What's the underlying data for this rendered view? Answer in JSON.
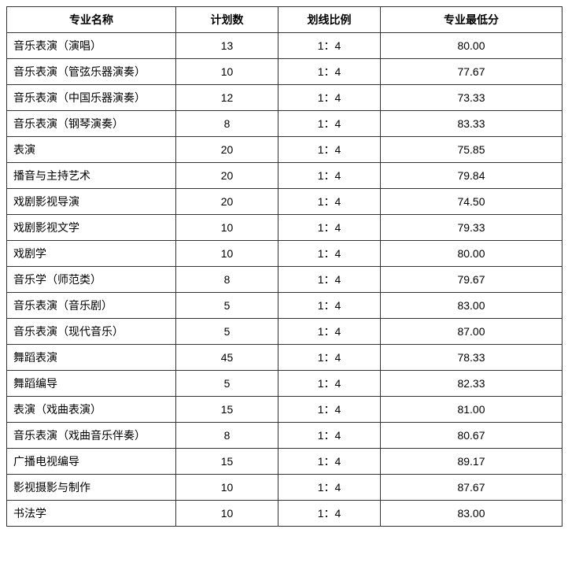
{
  "table": {
    "columns": [
      "专业名称",
      "计划数",
      "划线比例",
      "专业最低分"
    ],
    "rows": [
      [
        "音乐表演（演唱）",
        "13",
        "1：4",
        "80.00"
      ],
      [
        "音乐表演（管弦乐器演奏）",
        "10",
        "1：4",
        "77.67"
      ],
      [
        "音乐表演（中国乐器演奏）",
        "12",
        "1：4",
        "73.33"
      ],
      [
        "音乐表演（钢琴演奏）",
        "8",
        "1：4",
        "83.33"
      ],
      [
        "表演",
        "20",
        "1：4",
        "75.85"
      ],
      [
        "播音与主持艺术",
        "20",
        "1：4",
        "79.84"
      ],
      [
        "戏剧影视导演",
        "20",
        "1：4",
        "74.50"
      ],
      [
        "戏剧影视文学",
        "10",
        "1：4",
        "79.33"
      ],
      [
        "戏剧学",
        "10",
        "1：4",
        "80.00"
      ],
      [
        "音乐学（师范类）",
        "8",
        "1：4",
        "79.67"
      ],
      [
        "音乐表演（音乐剧）",
        "5",
        "1：4",
        "83.00"
      ],
      [
        "音乐表演（现代音乐）",
        "5",
        "1：4",
        "87.00"
      ],
      [
        "舞蹈表演",
        "45",
        "1：4",
        "78.33"
      ],
      [
        "舞蹈编导",
        "5",
        "1：4",
        "82.33"
      ],
      [
        "表演（戏曲表演）",
        "15",
        "1：4",
        "81.00"
      ],
      [
        "音乐表演（戏曲音乐伴奏）",
        "8",
        "1：4",
        "80.67"
      ],
      [
        "广播电视编导",
        "15",
        "1：4",
        "89.17"
      ],
      [
        "影视摄影与制作",
        "10",
        "1：4",
        "87.67"
      ],
      [
        "书法学",
        "10",
        "1：4",
        "83.00"
      ]
    ]
  }
}
